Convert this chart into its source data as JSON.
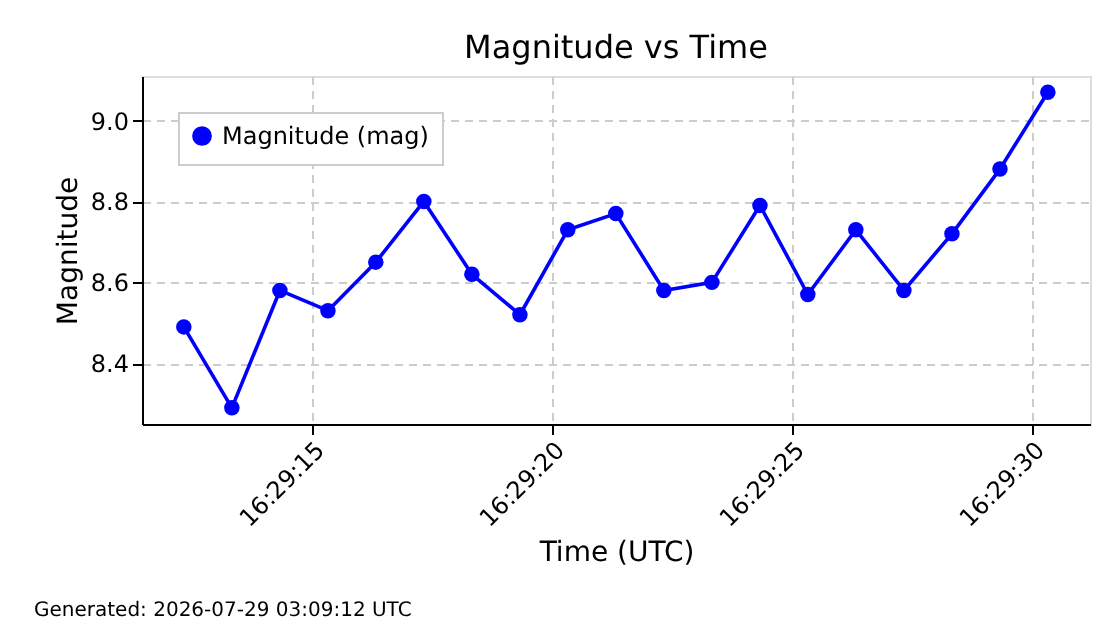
{
  "chart_data": {
    "type": "line",
    "title": "Magnitude vs Time",
    "xlabel": "Time (UTC)",
    "ylabel": "Magnitude",
    "x": [
      16.486758,
      16.487036,
      16.487314,
      16.487592,
      16.487869,
      16.488147,
      16.488425,
      16.488703,
      16.48898,
      16.489258,
      16.489536,
      16.489814,
      16.490092,
      16.490369,
      16.490647,
      16.490925,
      16.491203,
      16.491481,
      16.491758
    ],
    "series": [
      {
        "name": "Magnitude (mag)",
        "color": "#0000ff",
        "values": [
          8.49,
          8.29,
          8.58,
          8.53,
          8.65,
          8.8,
          8.62,
          8.52,
          8.73,
          8.77,
          8.58,
          8.6,
          8.79,
          8.57,
          8.73,
          8.58,
          8.72,
          8.88,
          9.07
        ]
      }
    ],
    "xlim": [
      16.486516,
      16.492002
    ],
    "xticks": [
      {
        "value": 16.4875,
        "label": "16:29:15"
      },
      {
        "value": 16.488889,
        "label": "16:29:20"
      },
      {
        "value": 16.490278,
        "label": "16:29:25"
      },
      {
        "value": 16.491667,
        "label": "16:29:30"
      }
    ],
    "ylim": [
      8.25,
      9.11
    ],
    "yticks": [
      {
        "value": 8.4,
        "label": "8.4"
      },
      {
        "value": 8.6,
        "label": "8.6"
      },
      {
        "value": 8.8,
        "label": "8.8"
      },
      {
        "value": 9.0,
        "label": "9.0"
      }
    ],
    "grid": true,
    "legend": "top left",
    "marker": "circle",
    "line_style": "solid",
    "annotations": [
      "Generated: 2026-07-29 03:09:12 UTC"
    ]
  }
}
